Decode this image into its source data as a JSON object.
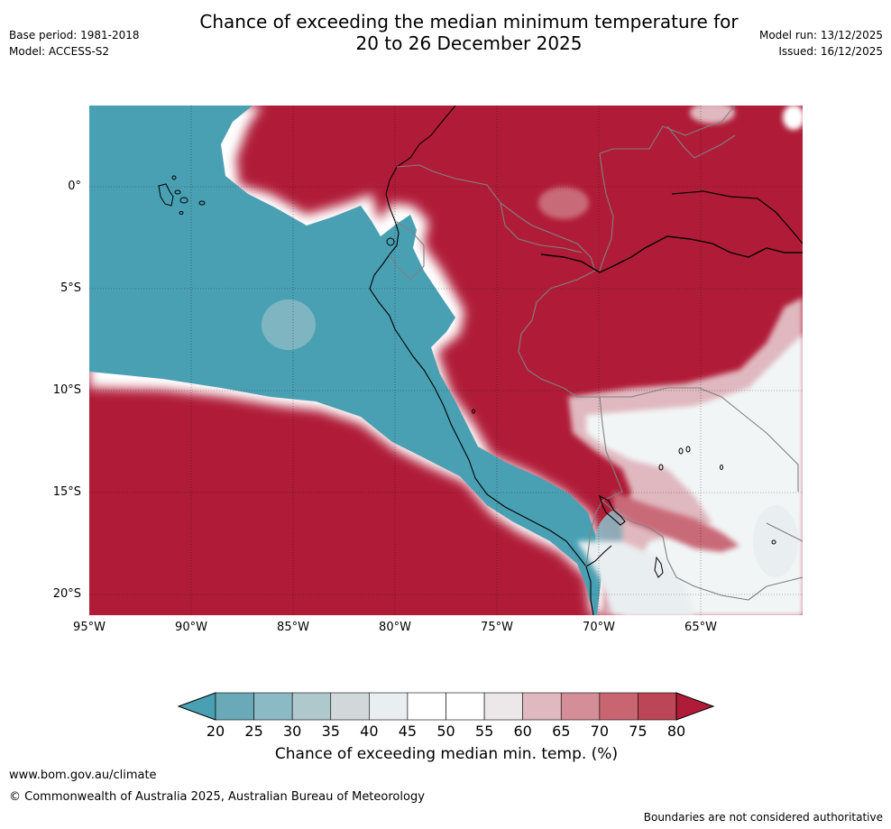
{
  "header": {
    "title_line1": "Chance of exceeding the median minimum temperature for",
    "title_line2": "20 to 26 December 2025",
    "base_period": "Base period: 1981-2018",
    "model": "Model: ACCESS-S2",
    "model_run": "Model run: 13/12/2025",
    "issued": "Issued: 16/12/2025"
  },
  "map": {
    "lat_labels": [
      "0°",
      "5°S",
      "10°S",
      "15°S",
      "20°S"
    ],
    "lon_labels": [
      "95°W",
      "90°W",
      "85°W",
      "80°W",
      "75°W",
      "70°W",
      "65°W"
    ],
    "colors": {
      "high": "#b01c38",
      "low": "#4aa0b3",
      "mid_high": "#c96a78",
      "mid_low": "#8fbcc6",
      "neutral": "#e8eef0",
      "land_line": "#000000",
      "border_line": "#808080"
    }
  },
  "colorbar": {
    "ticks": [
      "20",
      "25",
      "30",
      "35",
      "40",
      "45",
      "50",
      "55",
      "60",
      "65",
      "70",
      "75",
      "80"
    ],
    "colors": [
      "#4aa0b3",
      "#6aa9b8",
      "#8cbac4",
      "#aec8cc",
      "#d0d8da",
      "#e9eef0",
      "#ffffff",
      "#ffffff",
      "#ece8ea",
      "#e0b8bf",
      "#d48e98",
      "#c86571",
      "#bc4655",
      "#b01c38"
    ],
    "label": "Chance of exceeding median min. temp. (%)"
  },
  "footer": {
    "url": "www.bom.gov.au/climate",
    "copyright": "© Commonwealth of Australia 2025, Australian Bureau of Meteorology",
    "disclaimer": "Boundaries are not considered authoritative"
  }
}
